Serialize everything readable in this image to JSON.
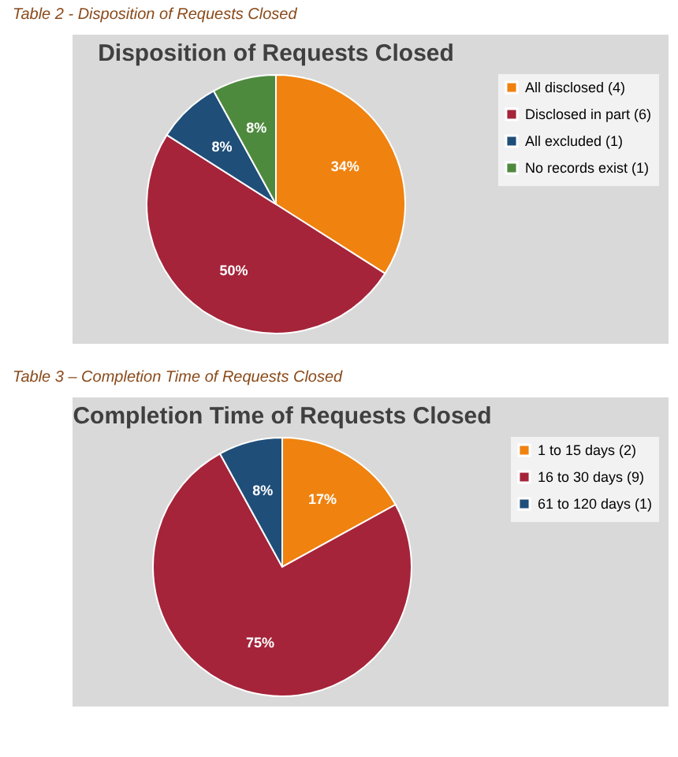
{
  "chart_data": [
    {
      "type": "pie",
      "title": "Disposition of Requests Closed",
      "annotations": [
        "Table 2 - Disposition of Requests Closed"
      ],
      "categories": [
        "All disclosed (4)",
        "Disclosed in part (6)",
        "All excluded (1)",
        "No records exist (1)"
      ],
      "values": [
        34,
        50,
        8,
        8
      ],
      "value_labels": [
        "34%",
        "50%",
        "8%",
        "8%"
      ],
      "colors": [
        "#f0820f",
        "#a5243a",
        "#1f4e79",
        "#4e8a3e"
      ],
      "legend": "right"
    },
    {
      "type": "pie",
      "title": "Completion Time of Requests Closed",
      "annotations": [
        "Table 3 – Completion Time of Requests Closed"
      ],
      "categories": [
        "1 to 15 days (2)",
        "16 to 30 days (9)",
        "61 to 120 days (1)"
      ],
      "values": [
        17,
        75,
        8
      ],
      "value_labels": [
        "17%",
        "75%",
        "8%"
      ],
      "colors": [
        "#f0820f",
        "#a5243a",
        "#1f4e79"
      ],
      "legend": "right"
    }
  ]
}
